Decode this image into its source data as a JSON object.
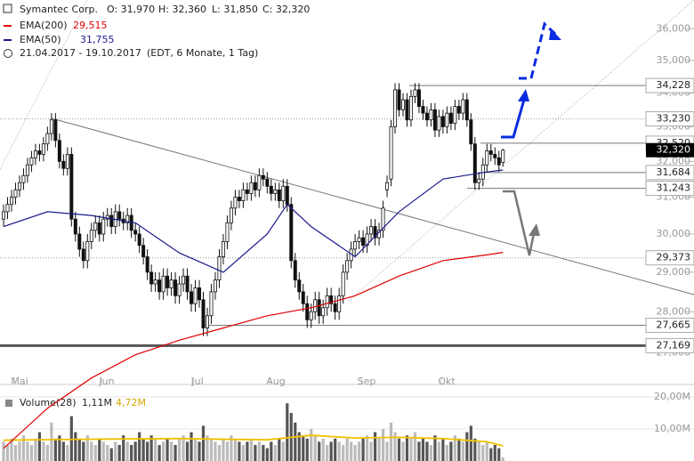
{
  "chart_data": {
    "type": "candlestick",
    "header": {
      "title": "Symantec Corp.",
      "open": "O: 31,970",
      "high": "H: 32,360",
      "low": "L: 31,850",
      "close": "C: 32,320",
      "range": "21.04.2017 - 19.10.2017",
      "info": "(EDT, 6 Monate, 1 Tag)"
    },
    "log": true,
    "ylim": [
      26.29,
      36.93
    ],
    "yticks": [
      {
        "value": 27,
        "label": "27,000"
      },
      {
        "value": 28,
        "label": "28,000"
      },
      {
        "value": 29,
        "label": "29,000"
      },
      {
        "value": 30,
        "label": "30,000"
      },
      {
        "value": 31,
        "label": "31,000"
      },
      {
        "value": 32,
        "label": "32,000"
      },
      {
        "value": 33,
        "label": "33,000"
      },
      {
        "value": 34,
        "label": "34,000"
      },
      {
        "value": 35,
        "label": "35,000"
      },
      {
        "value": 36,
        "label": "36,000"
      }
    ],
    "categories": [
      "Mai",
      "Jun",
      "Jul",
      "Aug",
      "Sep",
      "Okt"
    ],
    "ohlc": [
      [
        30.4,
        30.8,
        30.2,
        30.6
      ],
      [
        30.6,
        31.0,
        30.4,
        30.8
      ],
      [
        30.8,
        31.2,
        30.6,
        31.0
      ],
      [
        31.0,
        31.4,
        30.8,
        31.2
      ],
      [
        31.2,
        31.6,
        31.0,
        31.4
      ],
      [
        31.4,
        31.8,
        31.2,
        31.6
      ],
      [
        31.6,
        32.1,
        31.4,
        31.9
      ],
      [
        31.9,
        32.3,
        31.7,
        32.1
      ],
      [
        32.1,
        32.5,
        31.9,
        32.3
      ],
      [
        32.3,
        32.5,
        32.0,
        32.2
      ],
      [
        32.2,
        32.7,
        32.0,
        32.5
      ],
      [
        32.5,
        33.0,
        32.3,
        32.8
      ],
      [
        32.8,
        33.4,
        32.6,
        33.2
      ],
      [
        33.2,
        33.4,
        32.4,
        32.6
      ],
      [
        32.6,
        32.8,
        31.8,
        32.0
      ],
      [
        32.0,
        32.2,
        31.6,
        31.8
      ],
      [
        31.8,
        32.4,
        31.6,
        32.2
      ],
      [
        32.2,
        32.4,
        30.2,
        30.4
      ],
      [
        30.4,
        30.6,
        29.8,
        30.0
      ],
      [
        30.0,
        30.2,
        29.4,
        29.6
      ],
      [
        29.6,
        29.8,
        29.1,
        29.3
      ],
      [
        29.3,
        30.0,
        29.1,
        29.8
      ],
      [
        29.8,
        30.3,
        29.6,
        30.1
      ],
      [
        30.1,
        30.5,
        29.9,
        30.3
      ],
      [
        30.3,
        30.5,
        29.8,
        30.0
      ],
      [
        30.0,
        30.6,
        29.8,
        30.4
      ],
      [
        30.4,
        30.7,
        30.2,
        30.5
      ],
      [
        30.5,
        30.7,
        30.0,
        30.2
      ],
      [
        30.2,
        30.8,
        30.0,
        30.6
      ],
      [
        30.6,
        30.8,
        30.2,
        30.4
      ],
      [
        30.4,
        30.6,
        30.1,
        30.3
      ],
      [
        30.3,
        30.7,
        30.1,
        30.5
      ],
      [
        30.5,
        30.7,
        29.9,
        30.1
      ],
      [
        30.1,
        30.3,
        29.8,
        30.0
      ],
      [
        30.0,
        30.2,
        29.5,
        29.7
      ],
      [
        29.7,
        29.9,
        29.2,
        29.4
      ],
      [
        29.4,
        29.6,
        28.8,
        29.0
      ],
      [
        29.0,
        29.2,
        28.5,
        28.7
      ],
      [
        28.7,
        29.0,
        28.5,
        28.8
      ],
      [
        28.8,
        29.0,
        28.3,
        28.5
      ],
      [
        28.5,
        29.1,
        28.3,
        28.9
      ],
      [
        28.9,
        29.1,
        28.4,
        28.6
      ],
      [
        28.6,
        29.0,
        28.4,
        28.8
      ],
      [
        28.8,
        29.0,
        28.2,
        28.4
      ],
      [
        28.4,
        28.9,
        28.2,
        28.7
      ],
      [
        28.7,
        29.1,
        28.5,
        28.9
      ],
      [
        28.9,
        29.1,
        28.3,
        28.5
      ],
      [
        28.5,
        28.7,
        28.0,
        28.2
      ],
      [
        28.2,
        28.8,
        28.0,
        28.6
      ],
      [
        28.6,
        28.8,
        28.1,
        28.3
      ],
      [
        28.3,
        28.5,
        27.4,
        27.6
      ],
      [
        27.6,
        28.1,
        27.4,
        27.9
      ],
      [
        27.9,
        28.7,
        27.7,
        28.5
      ],
      [
        28.5,
        29.0,
        28.3,
        28.8
      ],
      [
        28.8,
        29.6,
        28.6,
        29.4
      ],
      [
        29.4,
        30.0,
        29.2,
        29.8
      ],
      [
        29.8,
        30.5,
        29.6,
        30.3
      ],
      [
        30.3,
        30.9,
        30.1,
        30.7
      ],
      [
        30.7,
        31.2,
        30.5,
        31.0
      ],
      [
        31.0,
        31.2,
        30.7,
        30.9
      ],
      [
        30.9,
        31.4,
        30.7,
        31.2
      ],
      [
        31.2,
        31.4,
        30.9,
        31.1
      ],
      [
        31.1,
        31.6,
        30.9,
        31.4
      ],
      [
        31.4,
        31.6,
        31.0,
        31.2
      ],
      [
        31.2,
        31.8,
        31.0,
        31.6
      ],
      [
        31.6,
        31.8,
        31.3,
        31.5
      ],
      [
        31.5,
        31.7,
        31.1,
        31.3
      ],
      [
        31.3,
        31.5,
        30.9,
        31.1
      ],
      [
        31.1,
        31.4,
        30.9,
        31.2
      ],
      [
        31.2,
        31.4,
        30.7,
        30.9
      ],
      [
        30.9,
        31.5,
        30.7,
        31.3
      ],
      [
        31.3,
        31.5,
        30.6,
        30.8
      ],
      [
        30.8,
        31.0,
        29.1,
        29.3
      ],
      [
        29.3,
        29.5,
        28.6,
        28.8
      ],
      [
        28.8,
        29.0,
        28.3,
        28.5
      ],
      [
        28.5,
        28.7,
        28.0,
        28.2
      ],
      [
        28.2,
        28.4,
        27.6,
        27.8
      ],
      [
        27.8,
        28.2,
        27.6,
        28.0
      ],
      [
        28.0,
        28.5,
        27.8,
        28.3
      ],
      [
        28.3,
        28.5,
        27.7,
        27.9
      ],
      [
        27.9,
        28.3,
        27.7,
        28.1
      ],
      [
        28.1,
        28.6,
        27.9,
        28.4
      ],
      [
        28.4,
        28.6,
        28.0,
        28.2
      ],
      [
        28.2,
        28.4,
        27.8,
        28.0
      ],
      [
        28.0,
        28.6,
        27.8,
        28.4
      ],
      [
        28.4,
        29.2,
        28.2,
        29.0
      ],
      [
        29.0,
        29.5,
        28.8,
        29.3
      ],
      [
        29.3,
        29.8,
        29.1,
        29.6
      ],
      [
        29.6,
        30.0,
        29.4,
        29.8
      ],
      [
        29.8,
        30.1,
        29.6,
        29.9
      ],
      [
        29.9,
        30.1,
        29.5,
        29.7
      ],
      [
        29.7,
        30.2,
        29.5,
        30.0
      ],
      [
        30.0,
        30.4,
        29.8,
        30.2
      ],
      [
        30.2,
        30.4,
        29.7,
        29.9
      ],
      [
        29.9,
        30.3,
        29.7,
        30.1
      ],
      [
        30.1,
        30.9,
        29.9,
        30.7
      ],
      [
        31.2,
        31.6,
        31.0,
        31.4
      ],
      [
        31.5,
        33.2,
        31.3,
        33.0
      ],
      [
        33.0,
        34.3,
        32.8,
        34.1
      ],
      [
        34.1,
        34.3,
        33.3,
        33.5
      ],
      [
        33.5,
        34.0,
        33.3,
        33.8
      ],
      [
        33.8,
        34.0,
        33.0,
        33.2
      ],
      [
        33.2,
        34.1,
        33.0,
        33.9
      ],
      [
        33.9,
        34.3,
        33.7,
        34.1
      ],
      [
        34.1,
        34.3,
        33.4,
        33.6
      ],
      [
        33.6,
        33.8,
        33.2,
        33.4
      ],
      [
        33.4,
        33.6,
        33.0,
        33.2
      ],
      [
        33.2,
        33.7,
        33.0,
        33.5
      ],
      [
        33.5,
        33.7,
        32.7,
        32.9
      ],
      [
        32.9,
        33.5,
        32.7,
        33.3
      ],
      [
        33.3,
        33.5,
        32.8,
        33.0
      ],
      [
        33.0,
        33.6,
        32.8,
        33.4
      ],
      [
        33.4,
        33.6,
        32.9,
        33.1
      ],
      [
        33.1,
        33.8,
        32.9,
        33.6
      ],
      [
        33.6,
        33.8,
        33.2,
        33.4
      ],
      [
        33.4,
        34.0,
        33.2,
        33.8
      ],
      [
        33.8,
        34.0,
        33.0,
        33.2
      ],
      [
        33.2,
        33.4,
        32.3,
        32.5
      ],
      [
        32.5,
        32.7,
        31.2,
        31.4
      ],
      [
        31.4,
        31.7,
        31.2,
        31.5
      ],
      [
        31.5,
        32.1,
        31.3,
        31.9
      ],
      [
        31.9,
        32.5,
        31.7,
        32.3
      ],
      [
        32.3,
        32.5,
        32.0,
        32.2
      ],
      [
        32.2,
        32.4,
        31.9,
        32.1
      ],
      [
        32.1,
        32.3,
        31.7,
        31.9
      ],
      [
        31.97,
        32.36,
        31.85,
        32.32
      ]
    ],
    "last_label": "32,320",
    "ema": [
      {
        "name": "EMA(200)",
        "color": "#e00000",
        "value_label": "29,515",
        "x": [
          0,
          11,
          22,
          33,
          44,
          55,
          66,
          77,
          88,
          99,
          110,
          121,
          125
        ],
        "values": [
          24.8,
          25.7,
          26.4,
          26.95,
          27.3,
          27.6,
          27.9,
          28.1,
          28.4,
          28.9,
          29.3,
          29.45,
          29.515
        ]
      },
      {
        "name": "EMA(50)",
        "color": "#1a1a8c",
        "value_label": "31,755",
        "x": [
          0,
          11,
          22,
          33,
          44,
          55,
          66,
          71,
          77,
          88,
          99,
          110,
          121,
          125
        ],
        "values": [
          30.2,
          30.6,
          30.5,
          30.3,
          29.5,
          29.0,
          30.0,
          30.8,
          30.2,
          29.4,
          30.6,
          31.5,
          31.7,
          31.755
        ]
      }
    ],
    "levels": [
      {
        "value": 34.228,
        "label": "34,228"
      },
      {
        "value": 33.23,
        "label": "33,230"
      },
      {
        "value": 32.52,
        "label": "32,520"
      },
      {
        "value": 31.684,
        "label": "31,684"
      },
      {
        "value": 31.243,
        "label": "31,243"
      },
      {
        "value": 29.373,
        "label": "29,373"
      },
      {
        "value": 27.665,
        "label": "27,665"
      },
      {
        "value": 27.169,
        "label": "27,169"
      }
    ],
    "volume": {
      "name": "Volume(28)",
      "last_label": "1,11M",
      "ylim": [
        0,
        21.67
      ],
      "yticks": [
        {
          "value": 20,
          "label": "20,00M"
        },
        {
          "value": 10,
          "label": "10,00M"
        }
      ],
      "values": [
        6,
        5,
        7,
        5,
        6,
        8,
        6,
        5,
        7,
        9,
        6,
        5,
        12,
        7,
        8,
        6,
        5,
        14,
        9,
        7,
        6,
        8,
        6,
        5,
        7,
        6,
        5,
        4,
        6,
        5,
        8,
        6,
        5,
        6,
        9,
        7,
        6,
        8,
        7,
        5,
        6,
        7,
        6,
        5,
        7,
        8,
        6,
        9,
        7,
        6,
        11,
        8,
        7,
        6,
        5,
        7,
        6,
        8,
        7,
        6,
        5,
        6,
        7,
        5,
        6,
        5,
        4,
        6,
        5,
        7,
        6,
        18,
        15,
        12,
        9,
        8,
        7,
        10,
        8,
        6,
        7,
        5,
        6,
        7,
        6,
        5,
        7,
        6,
        5,
        6,
        7,
        8,
        6,
        9,
        7,
        10,
        6,
        12,
        9,
        7,
        6,
        8,
        7,
        9,
        6,
        7,
        6,
        5,
        8,
        6,
        7,
        5,
        6,
        8,
        7,
        6,
        9,
        11,
        7,
        6,
        5,
        6,
        4,
        5,
        4,
        1.11
      ],
      "ma": {
        "color": "#f0c000",
        "last_label": "4,72M",
        "x": [
          0,
          22,
          44,
          66,
          77,
          88,
          99,
          110,
          121,
          125
        ],
        "values": [
          6.5,
          6.8,
          7.0,
          6.6,
          8.0,
          7.2,
          7.4,
          7.0,
          6.0,
          4.72
        ]
      }
    }
  }
}
